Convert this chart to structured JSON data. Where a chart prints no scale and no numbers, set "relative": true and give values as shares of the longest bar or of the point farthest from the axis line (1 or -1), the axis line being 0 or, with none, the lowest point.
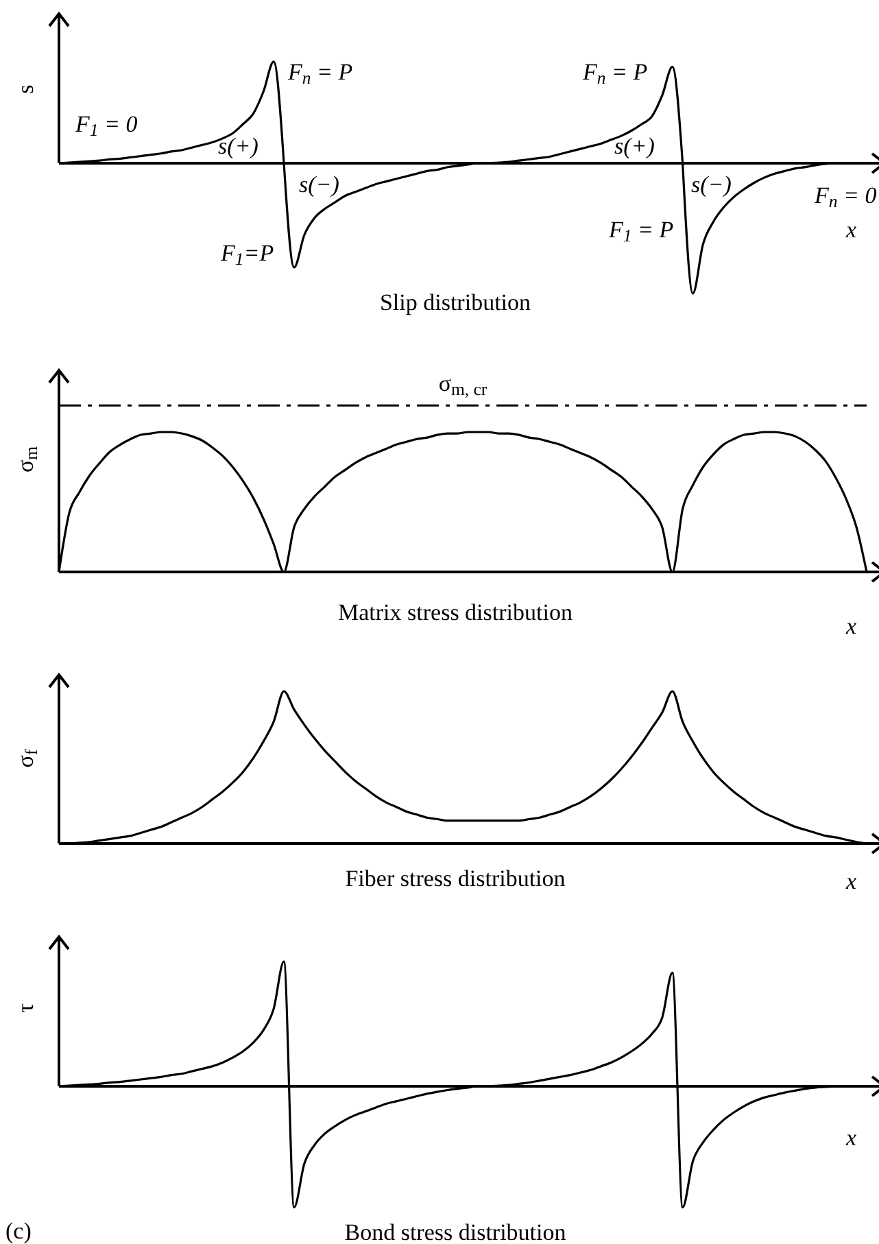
{
  "chart_data": [
    {
      "type": "line",
      "title": "Slip distribution",
      "xlabel": "x",
      "ylabel": "s",
      "relative": true,
      "categories": [
        null,
        null,
        null,
        null,
        null,
        null,
        null,
        null,
        null,
        null,
        null,
        null,
        null,
        null,
        null,
        null,
        null,
        null,
        null,
        null,
        null,
        null,
        null,
        null,
        null,
        null,
        null,
        null,
        null,
        null,
        null,
        null,
        null,
        null,
        null,
        null,
        null,
        null,
        null,
        null,
        null,
        null,
        null,
        null,
        null,
        null,
        null,
        null,
        null,
        null,
        null,
        null,
        null,
        null,
        null,
        null,
        null,
        null,
        null,
        null,
        null,
        null,
        null,
        null,
        null,
        null,
        null,
        null,
        null,
        null,
        null,
        null,
        null,
        null,
        null,
        null,
        null,
        null,
        null,
        null
      ],
      "series": [
        {
          "color": "#000000",
          "values": [
            0,
            0.005,
            0.01,
            0.015,
            0.02,
            0.03,
            0.035,
            0.045,
            0.055,
            0.065,
            0.075,
            0.09,
            0.1,
            0.12,
            0.14,
            0.16,
            0.19,
            0.23,
            0.3,
            0.38,
            0.55,
            0.78,
            0,
            null,
            null,
            null,
            null,
            null,
            null,
            null,
            null,
            null,
            null,
            null,
            null,
            null,
            null,
            null,
            null,
            null,
            null,
            null,
            null,
            null,
            null,
            null,
            null,
            null,
            null,
            null,
            null,
            null,
            null,
            null,
            null,
            null,
            null,
            null,
            null,
            null,
            null,
            null,
            null,
            null,
            null,
            null,
            null,
            null,
            null,
            null,
            null,
            null,
            null,
            null,
            null,
            null,
            null,
            null,
            null,
            null
          ]
        },
        {
          "color": "#000000",
          "values": [
            null,
            null,
            null,
            null,
            null,
            null,
            null,
            null,
            null,
            null,
            null,
            null,
            null,
            null,
            null,
            null,
            null,
            null,
            null,
            null,
            null,
            null,
            0,
            -0.8,
            -0.55,
            -0.42,
            -0.35,
            -0.3,
            -0.25,
            -0.22,
            -0.19,
            -0.16,
            -0.14,
            -0.12,
            -0.1,
            -0.08,
            -0.06,
            -0.05,
            -0.03,
            -0.02,
            -0.01,
            0,
            0,
            0.005,
            0.01,
            0.02,
            0.03,
            0.04,
            0.05,
            0.07,
            0.09,
            0.11,
            0.13,
            0.15,
            0.18,
            0.21,
            0.25,
            0.3,
            0.36,
            0.52,
            0.74,
            0,
            null,
            null,
            null,
            null,
            null,
            null,
            null,
            null,
            null,
            null,
            null,
            null,
            null,
            null,
            null,
            null,
            null,
            null
          ]
        },
        {
          "color": "#000000",
          "values": [
            null,
            null,
            null,
            null,
            null,
            null,
            null,
            null,
            null,
            null,
            null,
            null,
            null,
            null,
            null,
            null,
            null,
            null,
            null,
            null,
            null,
            null,
            null,
            null,
            null,
            null,
            null,
            null,
            null,
            null,
            null,
            null,
            null,
            null,
            null,
            null,
            null,
            null,
            null,
            null,
            null,
            null,
            null,
            null,
            null,
            null,
            null,
            null,
            null,
            null,
            null,
            null,
            null,
            null,
            null,
            null,
            null,
            null,
            null,
            null,
            null,
            0,
            -1,
            -0.62,
            -0.45,
            -0.34,
            -0.26,
            -0.2,
            -0.15,
            -0.11,
            -0.08,
            -0.06,
            -0.04,
            -0.03,
            -0.015,
            -0.005,
            0,
            0,
            0,
            0
          ]
        }
      ],
      "annotations": [
        "F$_{1}$ = 0",
        "F$_{n}$ = P",
        "s(+)",
        "s(−)",
        "F$_{1}$=P",
        "F$_{n}$ = P",
        "s(+)",
        "s(−)",
        "F$_{1}$ = P",
        "F$_{n}$ = 0"
      ]
    },
    {
      "type": "line",
      "title": "Matrix stress distribution",
      "xlabel": "x",
      "ylabel": "σ$_{m}$",
      "relative": true,
      "categories": [
        null,
        null,
        null,
        null,
        null,
        null,
        null,
        null,
        null,
        null,
        null,
        null,
        null,
        null,
        null,
        null,
        null,
        null,
        null,
        null,
        null,
        null,
        null,
        null,
        null,
        null,
        null,
        null,
        null,
        null,
        null,
        null,
        null,
        null,
        null,
        null,
        null,
        null,
        null,
        null,
        null,
        null,
        null,
        null,
        null,
        null,
        null,
        null,
        null,
        null,
        null,
        null,
        null,
        null,
        null,
        null,
        null,
        null,
        null,
        null,
        null,
        null,
        null,
        null,
        null,
        null,
        null,
        null,
        null,
        null,
        null,
        null,
        null,
        null,
        null,
        null,
        null,
        null,
        null,
        null
      ],
      "series": [
        {
          "color": "#000000",
          "values": [
            0,
            0.42,
            0.57,
            0.69,
            0.78,
            0.86,
            0.91,
            0.95,
            0.98,
            0.99,
            1,
            1,
            0.99,
            0.97,
            0.94,
            0.89,
            0.83,
            0.75,
            0.65,
            0.53,
            0.38,
            0.2,
            0,
            0.32,
            0.45,
            0.54,
            0.61,
            0.68,
            0.73,
            0.78,
            0.82,
            0.85,
            0.88,
            0.91,
            0.93,
            0.95,
            0.96,
            0.98,
            0.99,
            0.99,
            1,
            1,
            1,
            0.99,
            0.99,
            0.98,
            0.96,
            0.95,
            0.93,
            0.91,
            0.88,
            0.85,
            0.82,
            0.78,
            0.73,
            0.68,
            0.61,
            0.54,
            0.45,
            0.32,
            0,
            0.45,
            0.62,
            0.75,
            0.84,
            0.91,
            0.95,
            0.98,
            0.99,
            1,
            1,
            0.99,
            0.97,
            0.93,
            0.87,
            0.79,
            0.67,
            0.52,
            0.32,
            0
          ]
        }
      ],
      "ref_lines": [
        {
          "axis": "y",
          "value": 1.19,
          "label": "σ$_{m, cr}$",
          "line_style": "dashed",
          "color": "#000000"
        }
      ]
    },
    {
      "type": "line",
      "title": "Fiber stress distribution",
      "xlabel": "x",
      "ylabel": "σ$_{f}$",
      "relative": true,
      "categories": [
        null,
        null,
        null,
        null,
        null,
        null,
        null,
        null,
        null,
        null,
        null,
        null,
        null,
        null,
        null,
        null,
        null,
        null,
        null,
        null,
        null,
        null,
        null,
        null,
        null,
        null,
        null,
        null,
        null,
        null,
        null,
        null,
        null,
        null,
        null,
        null,
        null,
        null,
        null,
        null,
        null,
        null,
        null,
        null,
        null,
        null,
        null,
        null,
        null,
        null,
        null,
        null,
        null,
        null,
        null,
        null,
        null,
        null,
        null,
        null,
        null,
        null,
        null,
        null,
        null,
        null,
        null,
        null,
        null,
        null,
        null,
        null,
        null,
        null,
        null,
        null,
        null,
        null,
        null,
        null
      ],
      "series": [
        {
          "color": "#000000",
          "values": [
            0,
            0,
            0.005,
            0.01,
            0.02,
            0.03,
            0.04,
            0.05,
            0.07,
            0.09,
            0.11,
            0.14,
            0.17,
            0.2,
            0.24,
            0.29,
            0.34,
            0.4,
            0.47,
            0.56,
            0.67,
            0.8,
            1,
            0.88,
            0.78,
            0.69,
            0.61,
            0.54,
            0.47,
            0.41,
            0.36,
            0.31,
            0.27,
            0.24,
            0.21,
            0.19,
            0.17,
            0.16,
            0.15,
            0.15,
            0.15,
            0.15,
            0.15,
            0.15,
            0.15,
            0.15,
            0.16,
            0.17,
            0.19,
            0.21,
            0.24,
            0.27,
            0.31,
            0.36,
            0.42,
            0.49,
            0.57,
            0.66,
            0.76,
            0.86,
            1,
            0.8,
            0.67,
            0.56,
            0.47,
            0.4,
            0.34,
            0.29,
            0.24,
            0.2,
            0.17,
            0.14,
            0.11,
            0.09,
            0.07,
            0.05,
            0.04,
            0.025,
            0.01,
            0
          ]
        }
      ]
    },
    {
      "type": "line",
      "title": "Bond stress distribution",
      "xlabel": "x",
      "ylabel": "τ",
      "relative": true,
      "categories": [
        null,
        null,
        null,
        null,
        null,
        null,
        null,
        null,
        null,
        null,
        null,
        null,
        null,
        null,
        null,
        null,
        null,
        null,
        null,
        null,
        null,
        null,
        null,
        null,
        null,
        null,
        null,
        null,
        null,
        null,
        null,
        null,
        null,
        null,
        null,
        null,
        null,
        null,
        null,
        null,
        null,
        null,
        null,
        null,
        null,
        null,
        null,
        null,
        null,
        null,
        null,
        null,
        null,
        null,
        null,
        null,
        null,
        null,
        null,
        null,
        null,
        null,
        null,
        null,
        null,
        null,
        null,
        null,
        null,
        null,
        null,
        null,
        null,
        null,
        null,
        null,
        null,
        null,
        null,
        null
      ],
      "series": [
        {
          "color": "#000000",
          "values": [
            0,
            0.005,
            0.01,
            0.015,
            0.02,
            0.03,
            0.035,
            0.045,
            0.055,
            0.065,
            0.075,
            0.09,
            0.1,
            0.12,
            0.14,
            0.16,
            0.19,
            0.23,
            0.28,
            0.35,
            0.45,
            0.62,
            1,
            -0.97,
            -0.62,
            -0.47,
            -0.38,
            -0.32,
            -0.27,
            -0.23,
            -0.2,
            -0.17,
            -0.14,
            -0.12,
            -0.1,
            -0.08,
            -0.06,
            -0.045,
            -0.03,
            -0.02,
            -0.01,
            0,
            0,
            0.005,
            0.01,
            0.02,
            0.03,
            0.045,
            0.06,
            0.075,
            0.09,
            0.11,
            0.13,
            0.16,
            0.19,
            0.23,
            0.28,
            0.34,
            0.42,
            0.55,
            0.91,
            -0.97,
            -0.6,
            -0.45,
            -0.35,
            -0.27,
            -0.21,
            -0.16,
            -0.12,
            -0.09,
            -0.07,
            -0.05,
            -0.035,
            -0.02,
            -0.01,
            -0.005,
            0,
            0,
            0,
            0
          ]
        }
      ],
      "annotations": [
        "(c)"
      ]
    }
  ]
}
